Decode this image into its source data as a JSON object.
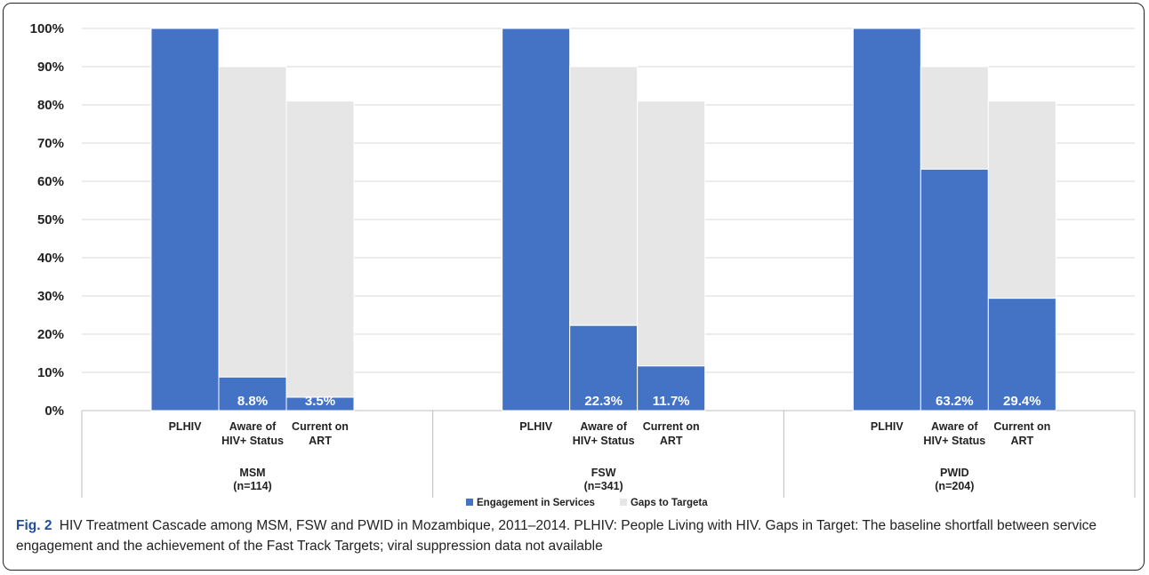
{
  "chart_data": {
    "type": "bar",
    "stacked": true,
    "groups": [
      {
        "name": "MSM",
        "n": "(n=114)",
        "categories": [
          "PLHIV",
          "Aware of HIV+ Status",
          "Current on ART"
        ]
      },
      {
        "name": "FSW",
        "n": "(n=341)",
        "categories": [
          "PLHIV",
          "Aware of HIV+ Status",
          "Current on ART"
        ]
      },
      {
        "name": "PWID",
        "n": "(n=204)",
        "categories": [
          "PLHIV",
          "Aware of HIV+ Status",
          "Current on ART"
        ]
      }
    ],
    "category_labels": [
      [
        "PLHIV"
      ],
      [
        "Aware of",
        "HIV+ Status"
      ],
      [
        "Current on",
        "ART"
      ]
    ],
    "series": [
      {
        "name": "Engagement in Services",
        "color": "#4472c4",
        "values": [
          100,
          8.8,
          3.5,
          100,
          22.3,
          11.7,
          100,
          63.2,
          29.4
        ]
      },
      {
        "name": "Gaps to Targeta",
        "color": "#e6e6e6",
        "values": [
          0,
          81.2,
          77.5,
          0,
          67.7,
          69.3,
          0,
          26.8,
          51.6
        ]
      }
    ],
    "data_labels": [
      "",
      "8.8%",
      "3.5%",
      "",
      "22.3%",
      "11.7%",
      "",
      "63.2%",
      "29.4%"
    ],
    "yticks": [
      "0%",
      "10%",
      "20%",
      "30%",
      "40%",
      "50%",
      "60%",
      "70%",
      "80%",
      "90%",
      "100%"
    ],
    "ylim": [
      0,
      100
    ],
    "grid": true,
    "legend_position": "bottom"
  },
  "caption": {
    "fig_label": "Fig. 2",
    "text": "HIV Treatment Cascade among MSM, FSW and PWID in Mozambique, 2011–2014. PLHIV: People Living with HIV. Gaps in Target: The baseline shortfall between service engagement and the achievement of the Fast Track Targets; viral suppression data not available"
  }
}
